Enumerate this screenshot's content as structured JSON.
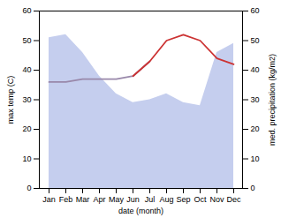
{
  "chart_data": {
    "type": "line",
    "xlabel": "date (month)",
    "ylabel": "max temp (C)",
    "y2label": "med. precipitation (kg/m2)",
    "categories": [
      "Jan",
      "Feb",
      "Mar",
      "Apr",
      "May",
      "Jun",
      "Jul",
      "Aug",
      "Sep",
      "Oct",
      "Nov",
      "Dec"
    ],
    "series": [
      {
        "type": "area",
        "axis": "y2",
        "color": "#c5ceee",
        "values": [
          51,
          52,
          46,
          38,
          32,
          29,
          30,
          32,
          29,
          28,
          46,
          49
        ]
      },
      {
        "type": "line",
        "color": "#9988aa",
        "values": [
          36,
          36,
          37,
          37,
          37,
          38,
          43,
          null,
          null,
          null,
          null,
          null
        ]
      },
      {
        "type": "line",
        "color": "#cc3333",
        "values": [
          null,
          null,
          null,
          null,
          null,
          38,
          43,
          50,
          52,
          50,
          44,
          42
        ]
      }
    ],
    "ylim": [
      0,
      60
    ],
    "yticks": [
      0,
      10,
      20,
      30,
      40,
      50,
      60
    ],
    "y2lim": [
      0,
      60
    ],
    "y2ticks": [
      0,
      10,
      20,
      30,
      40,
      50,
      60
    ]
  }
}
